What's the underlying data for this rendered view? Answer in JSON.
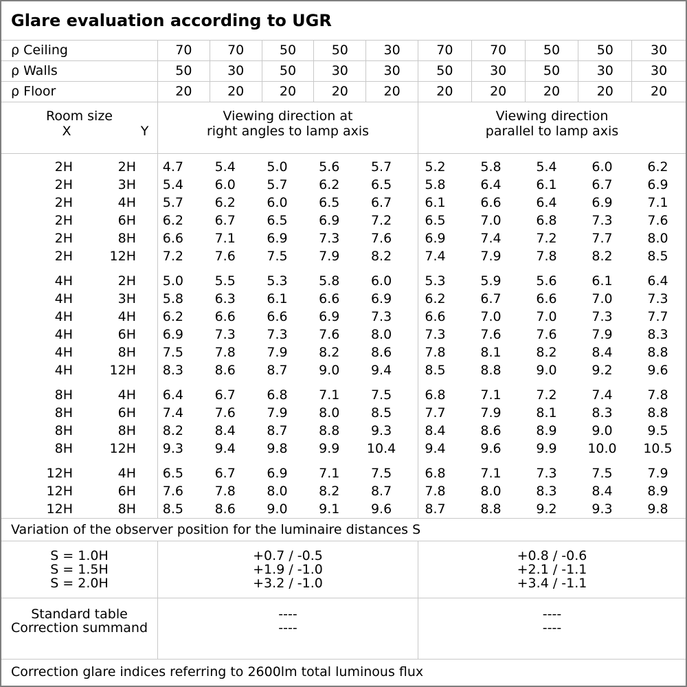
{
  "title": "Glare evaluation according to UGR",
  "reflectance_rows": [
    {
      "label": "ρ Ceiling",
      "values": [
        "70",
        "70",
        "50",
        "50",
        "30",
        "70",
        "70",
        "50",
        "50",
        "30"
      ]
    },
    {
      "label": "ρ Walls",
      "values": [
        "50",
        "30",
        "50",
        "30",
        "30",
        "50",
        "30",
        "50",
        "30",
        "30"
      ]
    },
    {
      "label": "ρ Floor",
      "values": [
        "20",
        "20",
        "20",
        "20",
        "20",
        "20",
        "20",
        "20",
        "20",
        "20"
      ]
    }
  ],
  "header": {
    "room_size": "Room size",
    "x_label": "X",
    "y_label": "Y",
    "group1_line1": "Viewing direction at",
    "group1_line2": "right angles to lamp axis",
    "group2_line1": "Viewing direction",
    "group2_line2": "parallel to lamp axis"
  },
  "ugr_blocks": [
    {
      "rows": [
        {
          "x": "2H",
          "y": "2H",
          "values": [
            "4.7",
            "5.4",
            "5.0",
            "5.6",
            "5.7",
            "5.2",
            "5.8",
            "5.4",
            "6.0",
            "6.2"
          ]
        },
        {
          "x": "2H",
          "y": "3H",
          "values": [
            "5.4",
            "6.0",
            "5.7",
            "6.2",
            "6.5",
            "5.8",
            "6.4",
            "6.1",
            "6.7",
            "6.9"
          ]
        },
        {
          "x": "2H",
          "y": "4H",
          "values": [
            "5.7",
            "6.2",
            "6.0",
            "6.5",
            "6.7",
            "6.1",
            "6.6",
            "6.4",
            "6.9",
            "7.1"
          ]
        },
        {
          "x": "2H",
          "y": "6H",
          "values": [
            "6.2",
            "6.7",
            "6.5",
            "6.9",
            "7.2",
            "6.5",
            "7.0",
            "6.8",
            "7.3",
            "7.6"
          ]
        },
        {
          "x": "2H",
          "y": "8H",
          "values": [
            "6.6",
            "7.1",
            "6.9",
            "7.3",
            "7.6",
            "6.9",
            "7.4",
            "7.2",
            "7.7",
            "8.0"
          ]
        },
        {
          "x": "2H",
          "y": "12H",
          "values": [
            "7.2",
            "7.6",
            "7.5",
            "7.9",
            "8.2",
            "7.4",
            "7.9",
            "7.8",
            "8.2",
            "8.5"
          ]
        }
      ]
    },
    {
      "rows": [
        {
          "x": "4H",
          "y": "2H",
          "values": [
            "5.0",
            "5.5",
            "5.3",
            "5.8",
            "6.0",
            "5.3",
            "5.9",
            "5.6",
            "6.1",
            "6.4"
          ]
        },
        {
          "x": "4H",
          "y": "3H",
          "values": [
            "5.8",
            "6.3",
            "6.1",
            "6.6",
            "6.9",
            "6.2",
            "6.7",
            "6.6",
            "7.0",
            "7.3"
          ]
        },
        {
          "x": "4H",
          "y": "4H",
          "values": [
            "6.2",
            "6.6",
            "6.6",
            "6.9",
            "7.3",
            "6.6",
            "7.0",
            "7.0",
            "7.3",
            "7.7"
          ]
        },
        {
          "x": "4H",
          "y": "6H",
          "values": [
            "6.9",
            "7.3",
            "7.3",
            "7.6",
            "8.0",
            "7.3",
            "7.6",
            "7.6",
            "7.9",
            "8.3"
          ]
        },
        {
          "x": "4H",
          "y": "8H",
          "values": [
            "7.5",
            "7.8",
            "7.9",
            "8.2",
            "8.6",
            "7.8",
            "8.1",
            "8.2",
            "8.4",
            "8.8"
          ]
        },
        {
          "x": "4H",
          "y": "12H",
          "values": [
            "8.3",
            "8.6",
            "8.7",
            "9.0",
            "9.4",
            "8.5",
            "8.8",
            "9.0",
            "9.2",
            "9.6"
          ]
        }
      ]
    },
    {
      "rows": [
        {
          "x": "8H",
          "y": "4H",
          "values": [
            "6.4",
            "6.7",
            "6.8",
            "7.1",
            "7.5",
            "6.8",
            "7.1",
            "7.2",
            "7.4",
            "7.8"
          ]
        },
        {
          "x": "8H",
          "y": "6H",
          "values": [
            "7.4",
            "7.6",
            "7.9",
            "8.0",
            "8.5",
            "7.7",
            "7.9",
            "8.1",
            "8.3",
            "8.8"
          ]
        },
        {
          "x": "8H",
          "y": "8H",
          "values": [
            "8.2",
            "8.4",
            "8.7",
            "8.8",
            "9.3",
            "8.4",
            "8.6",
            "8.9",
            "9.0",
            "9.5"
          ]
        },
        {
          "x": "8H",
          "y": "12H",
          "values": [
            "9.3",
            "9.4",
            "9.8",
            "9.9",
            "10.4",
            "9.4",
            "9.6",
            "9.9",
            "10.0",
            "10.5"
          ]
        }
      ]
    },
    {
      "rows": [
        {
          "x": "12H",
          "y": "4H",
          "values": [
            "6.5",
            "6.7",
            "6.9",
            "7.1",
            "7.5",
            "6.8",
            "7.1",
            "7.3",
            "7.5",
            "7.9"
          ]
        },
        {
          "x": "12H",
          "y": "6H",
          "values": [
            "7.6",
            "7.8",
            "8.0",
            "8.2",
            "8.7",
            "7.8",
            "8.0",
            "8.3",
            "8.4",
            "8.9"
          ]
        },
        {
          "x": "12H",
          "y": "8H",
          "values": [
            "8.5",
            "8.6",
            "9.0",
            "9.1",
            "9.6",
            "8.7",
            "8.8",
            "9.2",
            "9.3",
            "9.8"
          ]
        }
      ]
    }
  ],
  "variation_note": "Variation of the observer position for the luminaire distances S",
  "s_section": {
    "labels": [
      "S = 1.0H",
      "S = 1.5H",
      "S = 2.0H"
    ],
    "group1": [
      "+0.7 / -0.5",
      "+1.9 / -1.0",
      "+3.2 / -1.0"
    ],
    "group2": [
      "+0.8 / -0.6",
      "+2.1 / -1.1",
      "+3.4 / -1.1"
    ]
  },
  "correction_section": {
    "rows": [
      {
        "label": "Standard table",
        "group1": "----",
        "group2": "----"
      },
      {
        "label": "Correction summand",
        "group1": "----",
        "group2": "----"
      }
    ]
  },
  "footer_note": "Correction glare indices referring to 2600lm total luminous flux"
}
